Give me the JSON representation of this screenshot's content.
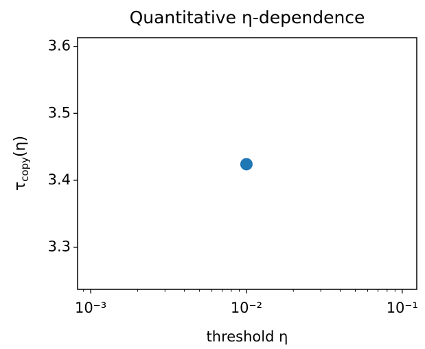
{
  "chart_data": {
    "type": "scatter",
    "title": "Quantitative η-dependence",
    "xlabel": "threshold η",
    "ylabel": {
      "symbol": "τ",
      "subscript": "copy",
      "argument": "(η)"
    },
    "x": [
      0.01
    ],
    "values": [
      3.424
    ],
    "color": "#1f77b4",
    "xscale": "log",
    "minor_ticks": true,
    "xlim": [
      0.000824,
      0.124
    ],
    "ylim": [
      3.237,
      3.613
    ],
    "xticks": [
      {
        "value": 0.001,
        "label": "10⁻³"
      },
      {
        "value": 0.01,
        "label": "10⁻²"
      },
      {
        "value": 0.1,
        "label": "10⁻¹"
      }
    ],
    "yticks": [
      3.3,
      3.4,
      3.5,
      3.6
    ]
  }
}
